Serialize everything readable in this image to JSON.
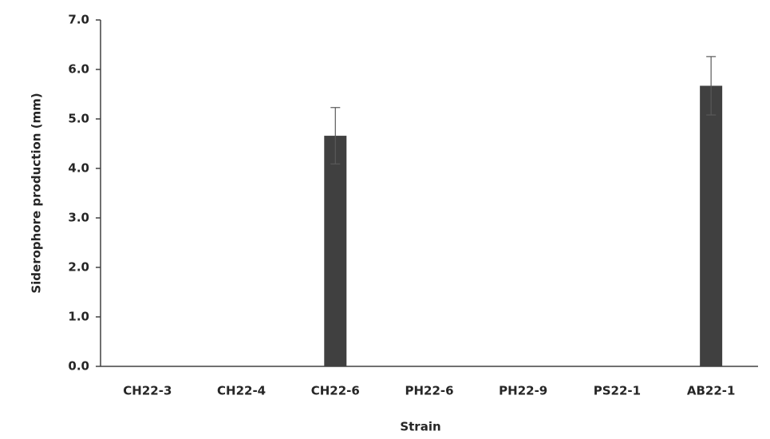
{
  "chart_data": {
    "type": "bar",
    "x_label": "Strain",
    "y_label": "Siderophore production (mm)",
    "categories": [
      "CH22-3",
      "CH22-4",
      "CH22-6",
      "PH22-6",
      "PH22-9",
      "PS22-1",
      "AB22-1"
    ],
    "values": [
      0,
      0,
      4.66,
      0,
      0,
      0,
      5.67
    ],
    "errors": [
      0,
      0,
      0.57,
      0,
      0,
      0,
      0.59
    ],
    "color": "#404040",
    "error_color": "#595959",
    "ylim": [
      0,
      7
    ],
    "yticks": [
      {
        "value": 0,
        "label": "0.0"
      },
      {
        "value": 1,
        "label": "1.0"
      },
      {
        "value": 2,
        "label": "2.0"
      },
      {
        "value": 3,
        "label": "3.0"
      },
      {
        "value": 4,
        "label": "4.0"
      },
      {
        "value": 5,
        "label": "5.0"
      },
      {
        "value": 6,
        "label": "6.0"
      },
      {
        "value": 7,
        "label": "7.0"
      }
    ],
    "grid": false
  }
}
